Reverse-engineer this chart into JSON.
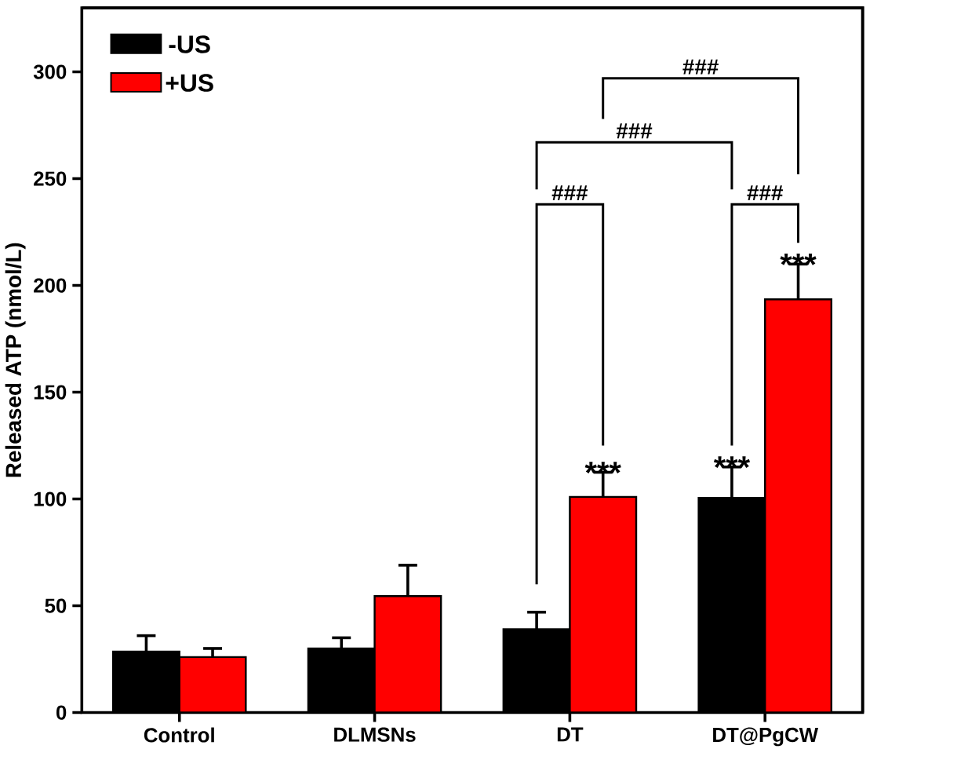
{
  "chart_data": {
    "type": "bar",
    "ylabel": "Released ATP (nmol/L)",
    "categories": [
      "Control",
      "DLMSNs",
      "DT",
      "DT@PgCW"
    ],
    "series": [
      {
        "name": "-US",
        "color": "#000000",
        "values": [
          28.5,
          30,
          39,
          100.5
        ],
        "errors": [
          7.5,
          5,
          8,
          14.5
        ]
      },
      {
        "name": "+US",
        "color": "#ff0000",
        "values": [
          26,
          54.5,
          101,
          193.5
        ],
        "errors": [
          4,
          14.5,
          11.5,
          16.5
        ]
      }
    ],
    "ylim": [
      0,
      330
    ],
    "yticks": [
      0,
      50,
      100,
      150,
      200,
      250,
      300
    ],
    "legend": "top left",
    "annotations": [
      "***",
      "***",
      "***",
      "###",
      "###",
      "###",
      "###"
    ]
  }
}
